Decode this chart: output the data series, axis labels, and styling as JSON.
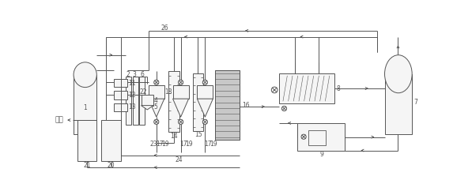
{
  "bg": "#ffffff",
  "lc": "#555555",
  "lw": 0.7,
  "fs": 5.5,
  "fig_w": 5.97,
  "fig_h": 2.47,
  "dpi": 100
}
